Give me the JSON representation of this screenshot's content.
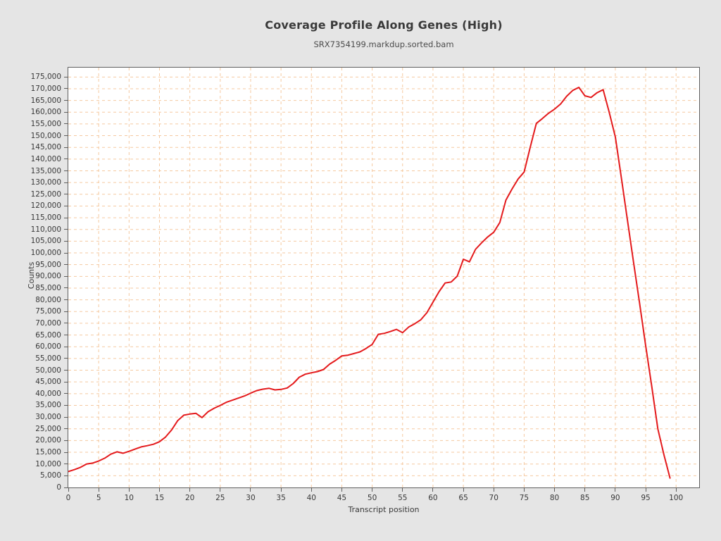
{
  "header": {
    "title": "Coverage Profile Along Genes (High)",
    "subtitle": "SRX7354199.markdup.sorted.bam"
  },
  "colors": {
    "background": "#e5e5e5",
    "plot_background": "#ffffff",
    "grid": "#f5c9a0",
    "line": "#e41a1c",
    "frame": "#5f5f5f",
    "text": "#3a3a3a"
  },
  "chart_data": {
    "type": "line",
    "title": "Coverage Profile Along Genes (High)",
    "subtitle": "SRX7354199.markdup.sorted.bam",
    "xlabel": "Transcript position",
    "ylabel": "Counts",
    "grid": true,
    "legend_position": "none",
    "xlim": [
      0,
      103.8
    ],
    "ylim": [
      0,
      179000
    ],
    "x_ticks": [
      0,
      5,
      10,
      15,
      20,
      25,
      30,
      35,
      40,
      45,
      50,
      55,
      60,
      65,
      70,
      75,
      80,
      85,
      90,
      95,
      100
    ],
    "y_ticks": [
      0,
      5000,
      10000,
      15000,
      20000,
      25000,
      30000,
      35000,
      40000,
      45000,
      50000,
      55000,
      60000,
      65000,
      70000,
      75000,
      80000,
      85000,
      90000,
      95000,
      100000,
      105000,
      110000,
      115000,
      120000,
      125000,
      130000,
      135000,
      140000,
      145000,
      150000,
      155000,
      160000,
      165000,
      170000,
      175000
    ],
    "x": [
      0,
      1,
      2,
      3,
      4,
      5,
      6,
      7,
      8,
      9,
      10,
      11,
      12,
      13,
      14,
      15,
      16,
      17,
      18,
      19,
      20,
      21,
      22,
      23,
      24,
      25,
      26,
      27,
      28,
      29,
      30,
      31,
      32,
      33,
      34,
      35,
      36,
      37,
      38,
      39,
      40,
      41,
      42,
      43,
      44,
      45,
      46,
      47,
      48,
      49,
      50,
      51,
      52,
      53,
      54,
      55,
      56,
      57,
      58,
      59,
      60,
      61,
      62,
      63,
      64,
      65,
      66,
      67,
      68,
      69,
      70,
      71,
      72,
      73,
      74,
      75,
      76,
      77,
      78,
      79,
      80,
      81,
      82,
      83,
      84,
      85,
      86,
      87,
      88,
      89,
      90,
      91,
      92,
      93,
      94,
      95,
      96,
      97,
      98,
      99
    ],
    "series": [
      {
        "name": "SRX7354199.markdup.sorted.bam",
        "color": "#e41a1c",
        "values": [
          6800,
          7600,
          8600,
          10000,
          10400,
          11300,
          12500,
          14200,
          15200,
          14600,
          15400,
          16400,
          17300,
          17800,
          18400,
          19500,
          21500,
          24500,
          28500,
          30800,
          31300,
          31600,
          29800,
          32300,
          33800,
          35000,
          36300,
          37200,
          38100,
          39000,
          40200,
          41300,
          41900,
          42300,
          41600,
          41800,
          42400,
          44300,
          47000,
          48300,
          48900,
          49400,
          50300,
          52600,
          54200,
          56100,
          56400,
          57100,
          57800,
          59300,
          61000,
          65300,
          65700,
          66500,
          67400,
          66000,
          68400,
          69800,
          71500,
          74500,
          79000,
          83500,
          87200,
          87600,
          90100,
          97300,
          96200,
          101500,
          104300,
          106800,
          108800,
          113000,
          122500,
          127200,
          131500,
          134500,
          145000,
          155200,
          157300,
          159500,
          161300,
          163500,
          166800,
          169300,
          170600,
          167000,
          166300,
          168300,
          169600,
          160000,
          149500,
          132000,
          114000,
          96000,
          78500,
          60500,
          43000,
          25000,
          14000,
          4000
        ]
      }
    ]
  }
}
